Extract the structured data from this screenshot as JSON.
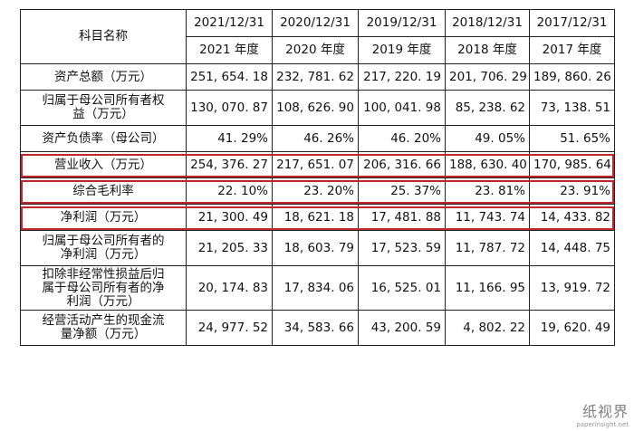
{
  "table": {
    "subject_header": "科目名称",
    "dates": [
      "2021/12/31",
      "2020/12/31",
      "2019/12/31",
      "2018/12/31",
      "2017/12/31"
    ],
    "years": [
      "2021 年度",
      "2020 年度",
      "2019 年度",
      "2018 年度",
      "2017 年度"
    ],
    "rows": [
      {
        "label": "资产总额（万元）",
        "values": [
          "251, 654. 18",
          "232, 781. 62",
          "217, 220. 19",
          "201, 706. 29",
          "189, 860. 26"
        ]
      },
      {
        "label_lines": [
          "归属于母公司所有者权",
          "益（万元）"
        ],
        "values": [
          "130, 070. 87",
          "108, 626. 90",
          "100, 041. 98",
          "85, 238. 62",
          "73, 138. 51"
        ]
      },
      {
        "label": "资产负债率（母公司）",
        "values": [
          "41. 29%",
          "46. 26%",
          "46. 20%",
          "49. 05%",
          "51. 65%"
        ]
      },
      {
        "label": "营业收入（万元）",
        "values": [
          "254, 376. 27",
          "217, 651. 07",
          "206, 316. 66",
          "188, 630. 40",
          "170, 985. 64"
        ]
      },
      {
        "label": "综合毛利率",
        "values": [
          "22. 10%",
          "23. 20%",
          "25. 37%",
          "23. 81%",
          "23. 91%"
        ]
      },
      {
        "label": "净利润（万元）",
        "values": [
          "21, 300. 49",
          "18, 621. 18",
          "17, 481. 88",
          "11, 743. 74",
          "14, 433. 82"
        ]
      },
      {
        "label_lines": [
          "归属于母公司所有者的",
          "净利润（万元）"
        ],
        "values": [
          "21, 205. 33",
          "18, 603. 79",
          "17, 523. 59",
          "11, 787. 72",
          "14, 448. 75"
        ]
      },
      {
        "label_lines": [
          "扣除非经常性损益后归",
          "属于母公司所有者的净",
          "利润（万元）"
        ],
        "values": [
          "20, 174. 83",
          "17, 834. 06",
          "16, 525. 01",
          "11, 166. 95",
          "13, 919. 72"
        ]
      },
      {
        "label_lines": [
          "经营活动产生的现金流",
          "量净额（万元）"
        ],
        "values": [
          "24, 977. 52",
          "34, 583. 66",
          "43, 200. 59",
          "4, 802. 22",
          "19, 620. 49"
        ]
      }
    ]
  },
  "highlight_color": "#c0262b",
  "watermark": {
    "logo": "纸视界",
    "url": "paperinsight.net"
  }
}
